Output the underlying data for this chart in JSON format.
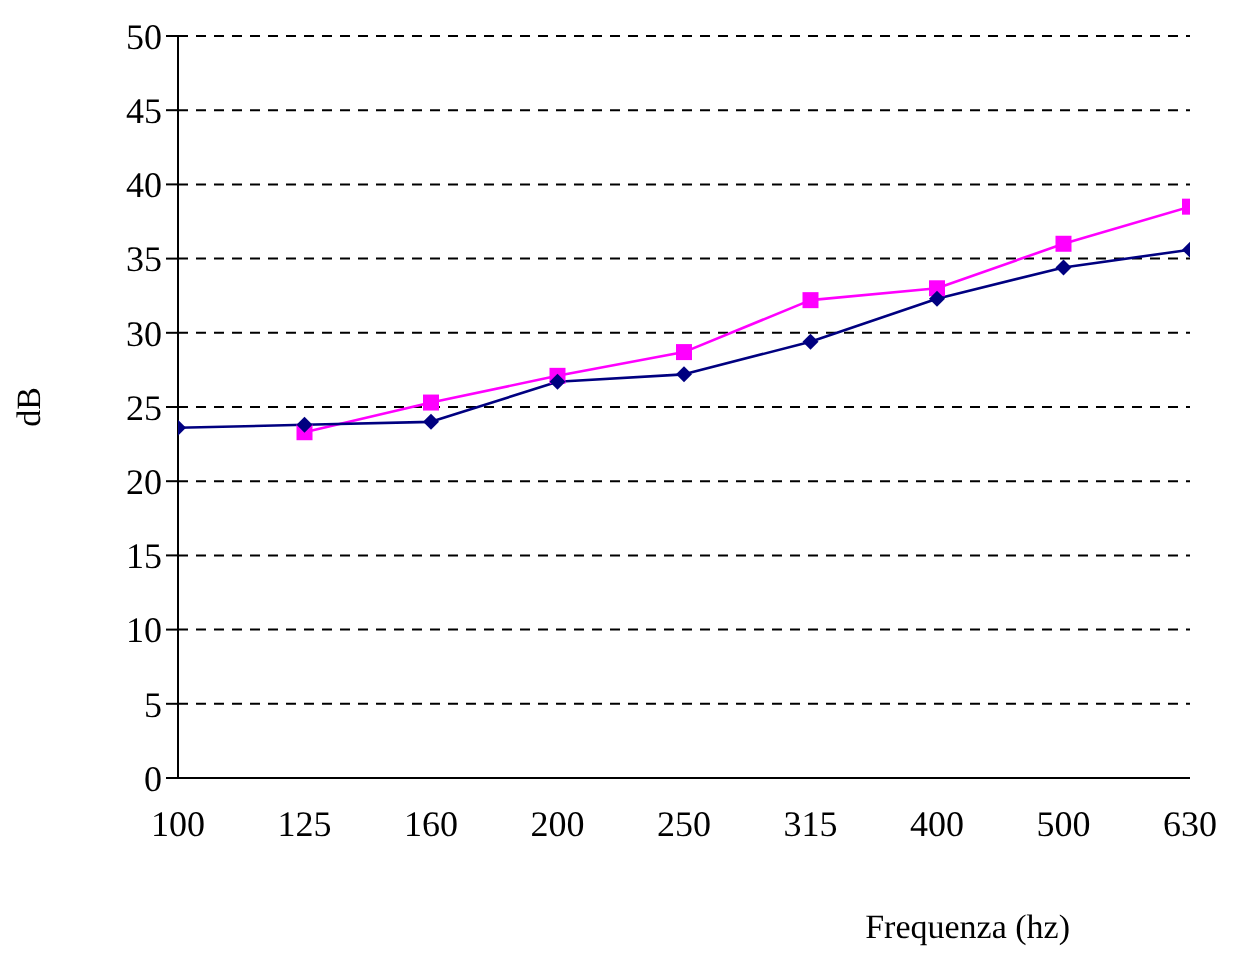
{
  "chart_data": {
    "type": "line",
    "xlabel": "Frequenza (hz)",
    "ylabel": "dB",
    "categories": [
      "100",
      "125",
      "160",
      "200",
      "250",
      "315",
      "400",
      "500",
      "630"
    ],
    "series": [
      {
        "color": "#000080",
        "marker": "diamond",
        "values": [
          23.6,
          23.8,
          24.0,
          26.7,
          27.2,
          29.4,
          32.3,
          34.4,
          35.6
        ]
      },
      {
        "color": "#ff00ff",
        "marker": "square",
        "values": [
          null,
          23.3,
          25.3,
          27.1,
          28.7,
          32.2,
          33.0,
          36.0,
          38.5
        ]
      }
    ],
    "ylim": [
      0,
      50
    ],
    "yticks": [
      0,
      5,
      10,
      15,
      20,
      25,
      30,
      35,
      40,
      45,
      50
    ],
    "grid": "y",
    "legend": false,
    "line_style": "solid"
  }
}
